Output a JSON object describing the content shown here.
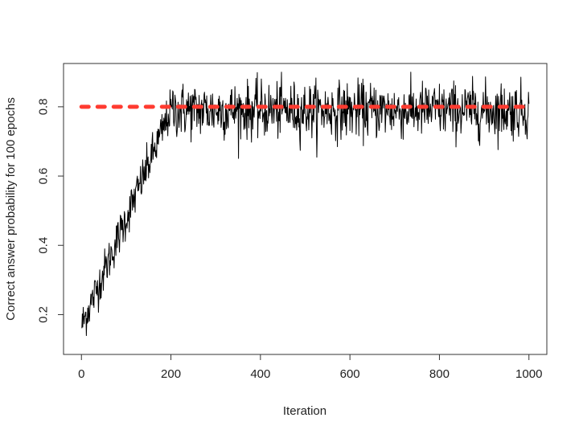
{
  "chart_data": {
    "type": "line",
    "title": "",
    "xlabel": "Iteration",
    "ylabel": "Correct answer probability for 100 epochs",
    "xlim": [
      -40,
      1040
    ],
    "ylim": [
      0.085,
      0.925
    ],
    "x_ticks": [
      0,
      200,
      400,
      600,
      800,
      1000
    ],
    "y_ticks": [
      0.2,
      0.4,
      0.6,
      0.8
    ],
    "grid": false,
    "legend": "none",
    "series": [
      {
        "style": "solid",
        "color": "#000000",
        "x_start": 1,
        "x_step": 1,
        "count": 1000,
        "ramp_from": 0.17,
        "ramp_to": 0.79,
        "ramp_end_x": 200,
        "plateau_mean": 0.79,
        "noise_sd": 0.04,
        "y_min": 0.12,
        "y_max": 0.9
      },
      {
        "style": "dashed",
        "color": "#ff3b30",
        "x": [
          0,
          1000
        ],
        "y": [
          0.8,
          0.8
        ]
      }
    ]
  }
}
